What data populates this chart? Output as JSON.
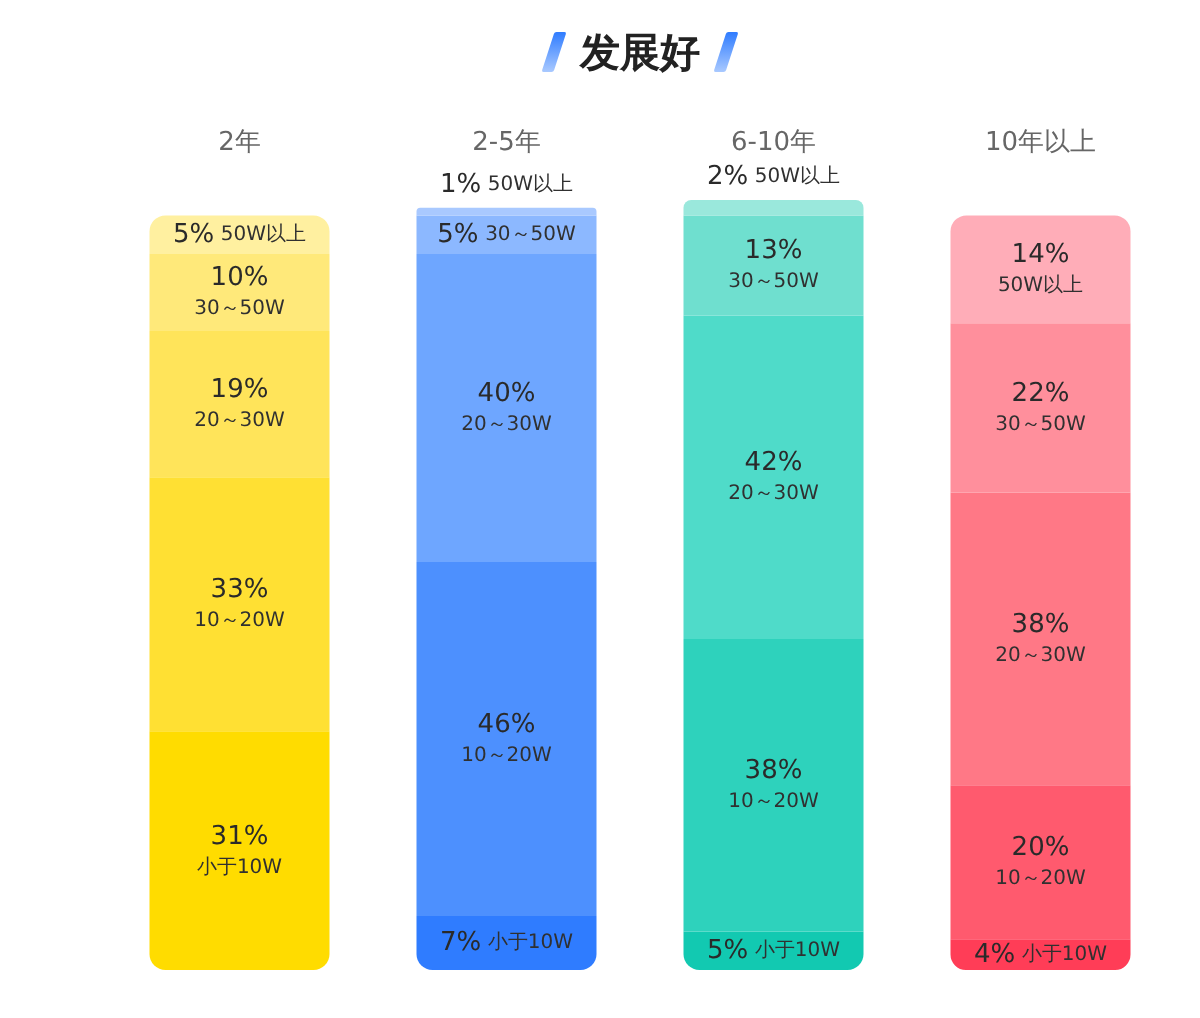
{
  "chart_data": {
    "type": "bar",
    "title": "发展好",
    "categories": [
      "2年",
      "2-5年",
      "6-10年",
      "10年以上"
    ],
    "stacked": true,
    "tick_labels": "x",
    "series": [
      {
        "name": "小于10W",
        "values": [
          31,
          7,
          5,
          4
        ],
        "colors": [
          "#ffdc00",
          "#2f7cff",
          "#12c9b1",
          "#ff3d57"
        ],
        "value_labels": [
          "31%",
          "7%",
          "5%",
          "4%"
        ]
      },
      {
        "name": "10～20W",
        "values": [
          33,
          46,
          38,
          20
        ],
        "colors": [
          "#ffe033",
          "#4d90fe",
          "#2ed2bc",
          "#ff5a6e"
        ],
        "value_labels": [
          "33%",
          "46%",
          "38%",
          "20%"
        ]
      },
      {
        "name": "20～30W",
        "values": [
          19,
          40,
          42,
          38
        ],
        "colors": [
          "#ffe45a",
          "#6ea6ff",
          "#4fdbc9",
          "#ff7886"
        ],
        "value_labels": [
          "19%",
          "40%",
          "42%",
          "38%"
        ]
      },
      {
        "name": "30～50W",
        "values": [
          10,
          5,
          13,
          22
        ],
        "colors": [
          "#ffe97a",
          "#8cb8ff",
          "#6fdfcf",
          "#ff8f9c"
        ],
        "value_labels": [
          "10%",
          "5%",
          "13%",
          "22%"
        ]
      },
      {
        "name": "50W以上",
        "values": [
          5,
          1,
          2,
          14
        ],
        "colors": [
          "#fff0a0",
          "#a9c9ff",
          "#9ae8dc",
          "#ffadb8"
        ],
        "value_labels": [
          "5%",
          "1%",
          "2%",
          "14%"
        ]
      }
    ]
  }
}
